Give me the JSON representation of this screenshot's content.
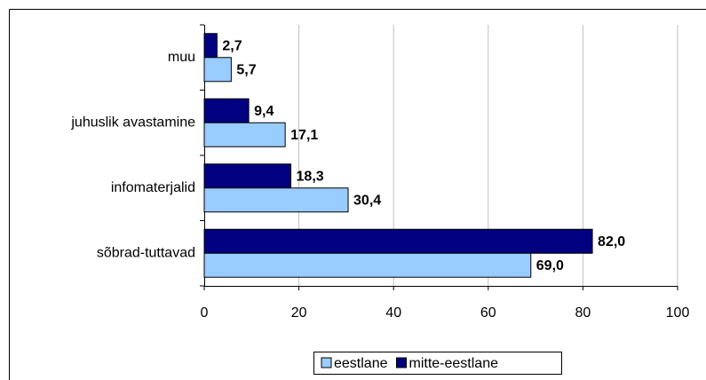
{
  "chart_data": {
    "type": "barh",
    "categories": [
      "muu",
      "juhuslik avastamine",
      "infomaterjalid",
      "sõbrad-tuttavad"
    ],
    "series": [
      {
        "name": "eestlane",
        "color": "#99ccff",
        "values": [
          5.7,
          17.1,
          30.4,
          69.0
        ],
        "value_labels": [
          "5,7",
          "17,1",
          "30,4",
          "69,0"
        ]
      },
      {
        "name": "mitte-eestlane",
        "color": "#000080",
        "values": [
          2.7,
          9.4,
          18.3,
          82.0
        ],
        "value_labels": [
          "2,7",
          "9,4",
          "18,3",
          "82,0"
        ]
      }
    ],
    "xlim": [
      0,
      100
    ],
    "xticks": [
      0,
      20,
      40,
      60,
      80,
      100
    ],
    "grid": true,
    "legend": "bottom"
  }
}
